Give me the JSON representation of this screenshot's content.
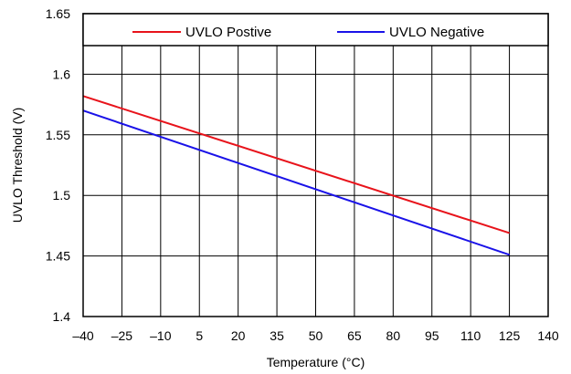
{
  "chart_data": {
    "type": "line",
    "title": "",
    "xlabel": "Temperature (°C)",
    "ylabel": "UVLO Threshold (V)",
    "xlim": [
      -40,
      140
    ],
    "ylim": [
      1.4,
      1.65
    ],
    "x_ticks": [
      -40,
      -25,
      -10,
      5,
      20,
      35,
      50,
      65,
      80,
      95,
      110,
      125,
      140
    ],
    "x_tick_labels": [
      "–40",
      "–25",
      "–10",
      "5",
      "20",
      "35",
      "50",
      "65",
      "80",
      "95",
      "110",
      "125",
      "140"
    ],
    "y_ticks": [
      1.4,
      1.45,
      1.5,
      1.55,
      1.6,
      1.65
    ],
    "y_tick_labels": [
      "1.4",
      "1.45",
      "1.5",
      "1.55",
      "1.6",
      "1.65"
    ],
    "grid": true,
    "legend_position": "top",
    "series": [
      {
        "name": "UVLO Postive",
        "color": "#e8131b",
        "x": [
          -40,
          125
        ],
        "y": [
          1.582,
          1.469
        ]
      },
      {
        "name": "UVLO Negative",
        "color": "#1a12e8",
        "x": [
          -40,
          125
        ],
        "y": [
          1.57,
          1.451
        ]
      }
    ]
  }
}
